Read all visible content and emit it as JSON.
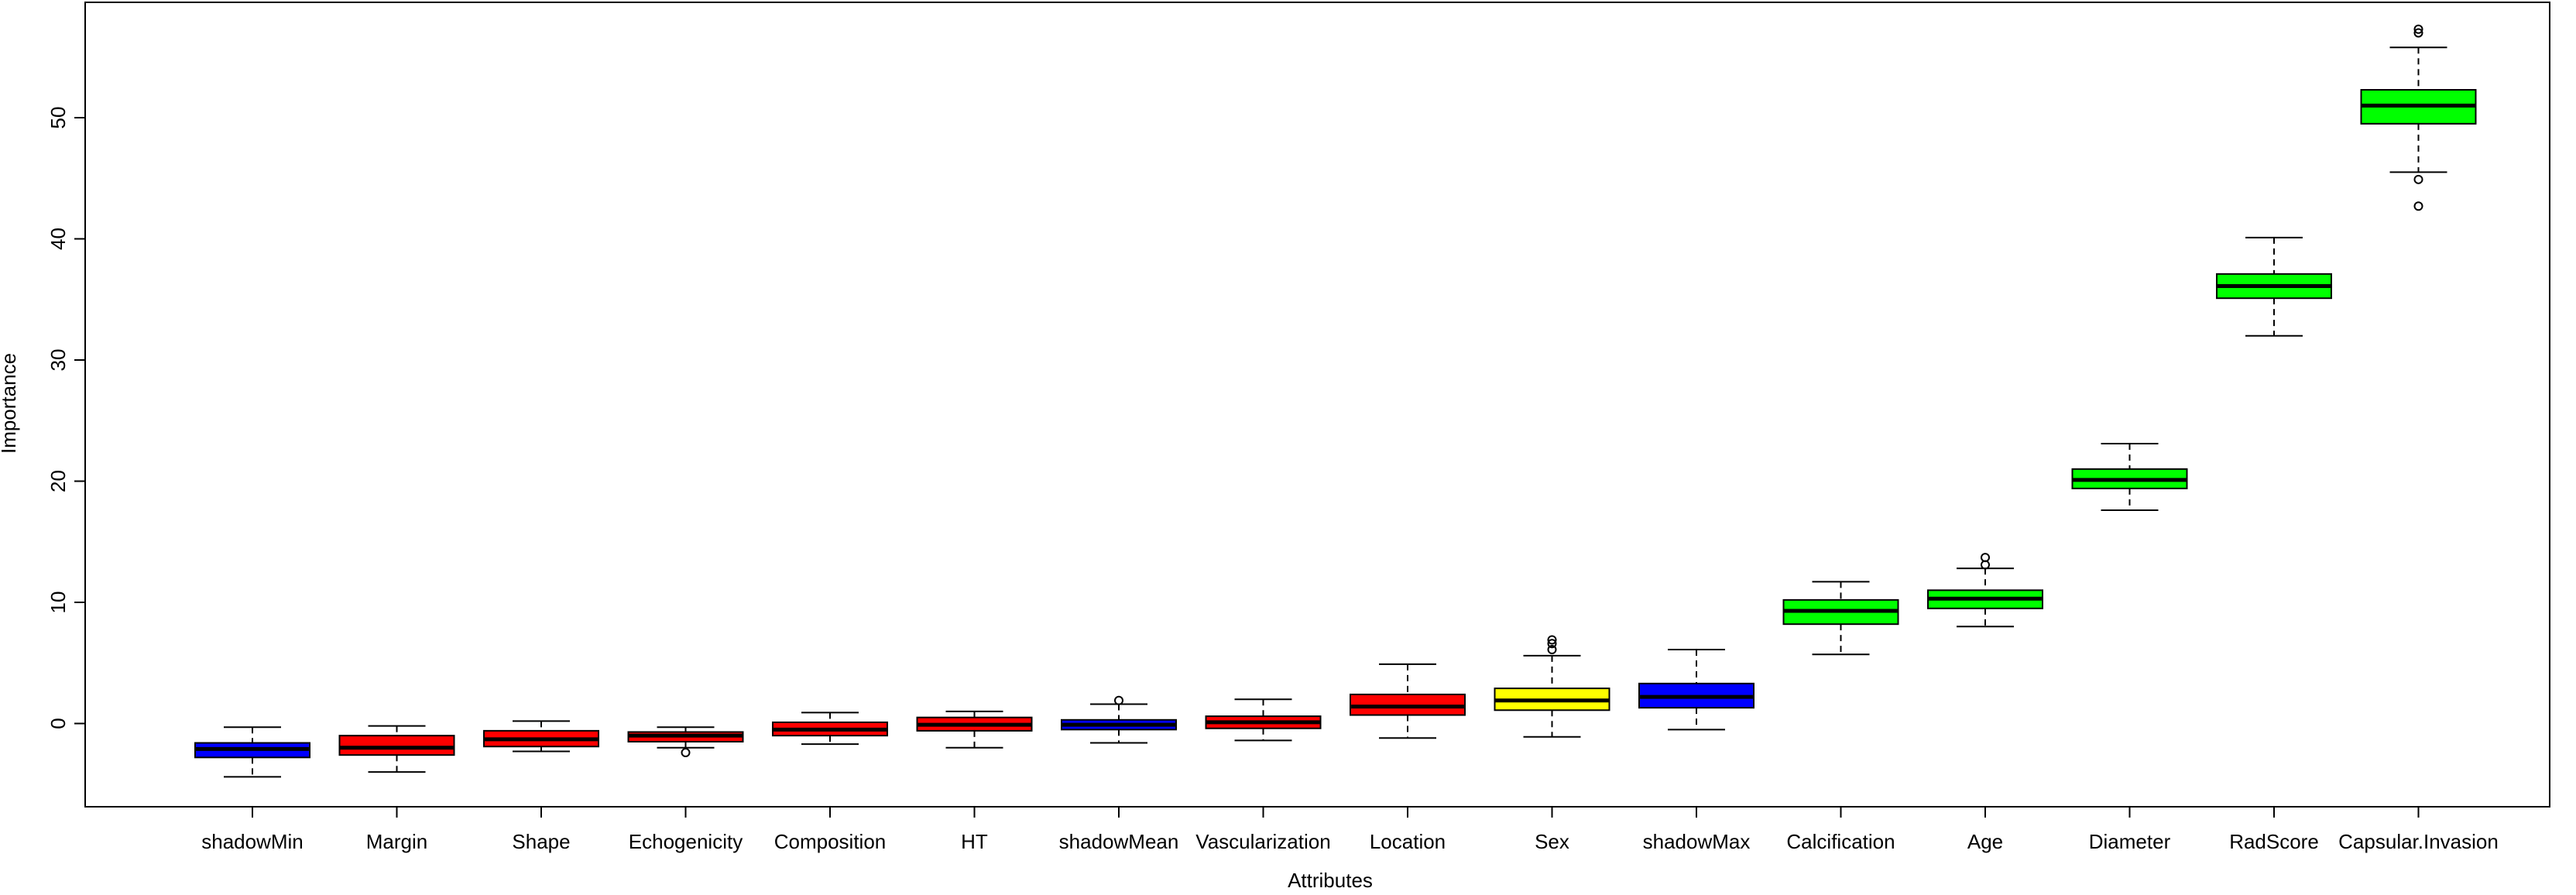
{
  "chart_data": {
    "type": "boxplot",
    "title": "",
    "xlabel": "Attributes",
    "ylabel": "Importance",
    "ylim": [
      -7,
      59
    ],
    "yticks": [
      0,
      10,
      20,
      30,
      40,
      50
    ],
    "grid": false,
    "legend": "none",
    "colors": {
      "shadow": "#0000FF",
      "rejected": "#FF0000",
      "tentative": "#FFFF00",
      "confirmed": "#00FF00"
    },
    "boxes": [
      {
        "label": "shadowMin",
        "group": "shadow",
        "whisker_low": -4.4,
        "q1": -2.8,
        "median": -2.1,
        "q3": -1.6,
        "whisker_high": -0.3,
        "outliers": []
      },
      {
        "label": "Margin",
        "group": "rejected",
        "whisker_low": -4.0,
        "q1": -2.6,
        "median": -2.0,
        "q3": -1.0,
        "whisker_high": -0.2,
        "outliers": []
      },
      {
        "label": "Shape",
        "group": "rejected",
        "whisker_low": -2.3,
        "q1": -1.9,
        "median": -1.3,
        "q3": -0.6,
        "whisker_high": 0.2,
        "outliers": []
      },
      {
        "label": "Echogenicity",
        "group": "rejected",
        "whisker_low": -2.0,
        "q1": -1.5,
        "median": -1.0,
        "q3": -0.7,
        "whisker_high": -0.3,
        "outliers": [
          -2.4
        ]
      },
      {
        "label": "Composition",
        "group": "rejected",
        "whisker_low": -1.7,
        "q1": -1.0,
        "median": -0.5,
        "q3": 0.1,
        "whisker_high": 0.9,
        "outliers": []
      },
      {
        "label": "HT",
        "group": "rejected",
        "whisker_low": -2.0,
        "q1": -0.6,
        "median": -0.1,
        "q3": 0.5,
        "whisker_high": 1.0,
        "outliers": []
      },
      {
        "label": "shadowMean",
        "group": "shadow",
        "whisker_low": -1.6,
        "q1": -0.5,
        "median": -0.1,
        "q3": 0.3,
        "whisker_high": 1.6,
        "outliers": [
          1.9
        ]
      },
      {
        "label": "Vascularization",
        "group": "rejected",
        "whisker_low": -1.4,
        "q1": -0.4,
        "median": 0.1,
        "q3": 0.6,
        "whisker_high": 2.0,
        "outliers": []
      },
      {
        "label": "Location",
        "group": "rejected",
        "whisker_low": -1.2,
        "q1": 0.7,
        "median": 1.4,
        "q3": 2.4,
        "whisker_high": 4.9,
        "outliers": []
      },
      {
        "label": "Sex",
        "group": "tentative",
        "whisker_low": -1.1,
        "q1": 1.1,
        "median": 1.9,
        "q3": 2.9,
        "whisker_high": 5.6,
        "outliers": [
          6.1,
          6.6,
          6.9
        ]
      },
      {
        "label": "shadowMax",
        "group": "shadow",
        "whisker_low": -0.5,
        "q1": 1.3,
        "median": 2.2,
        "q3": 3.3,
        "whisker_high": 6.1,
        "outliers": []
      },
      {
        "label": "Calcification",
        "group": "confirmed",
        "whisker_low": 5.7,
        "q1": 8.2,
        "median": 9.3,
        "q3": 10.2,
        "whisker_high": 11.7,
        "outliers": []
      },
      {
        "label": "Age",
        "group": "confirmed",
        "whisker_low": 8.0,
        "q1": 9.5,
        "median": 10.3,
        "q3": 11.0,
        "whisker_high": 12.8,
        "outliers": [
          13.1,
          13.7
        ]
      },
      {
        "label": "Diameter",
        "group": "confirmed",
        "whisker_low": 17.6,
        "q1": 19.4,
        "median": 20.1,
        "q3": 21.0,
        "whisker_high": 23.1,
        "outliers": []
      },
      {
        "label": "RadScore",
        "group": "confirmed",
        "whisker_low": 32.0,
        "q1": 35.1,
        "median": 36.1,
        "q3": 37.1,
        "whisker_high": 40.1,
        "outliers": []
      },
      {
        "label": "Capsular.Invasion",
        "group": "confirmed",
        "whisker_low": 45.5,
        "q1": 49.5,
        "median": 51.0,
        "q3": 52.3,
        "whisker_high": 55.8,
        "outliers": [
          42.7,
          44.9,
          57.0,
          57.3
        ]
      }
    ]
  }
}
